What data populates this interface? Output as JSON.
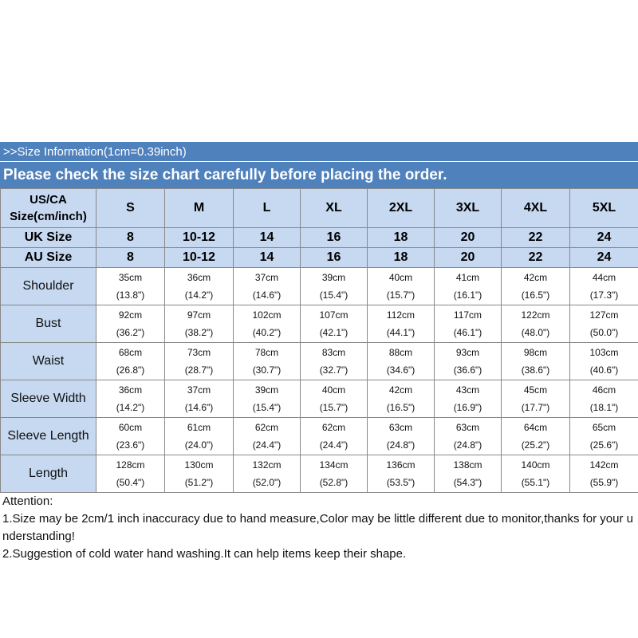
{
  "header": {
    "title": ">>Size Information(1cm=0.39inch)",
    "subtitle": "Please check the size chart carefully before placing the order."
  },
  "rows": {
    "us_label": "US/CA Size(cm/inch)",
    "us_label_line1": "US/CA",
    "us_label_line2": "Size(cm/inch)",
    "uk_label": "UK Size",
    "au_label": "AU Size"
  },
  "sizes": [
    "S",
    "M",
    "L",
    "XL",
    "2XL",
    "3XL",
    "4XL",
    "5XL"
  ],
  "uk_sizes": [
    "8",
    "10-12",
    "14",
    "16",
    "18",
    "20",
    "22",
    "24"
  ],
  "au_sizes": [
    "8",
    "10-12",
    "14",
    "16",
    "18",
    "20",
    "22",
    "24"
  ],
  "measurements": [
    {
      "name": "Shoulder",
      "cm": [
        "35cm",
        "36cm",
        "37cm",
        "39cm",
        "40cm",
        "41cm",
        "42cm",
        "44cm"
      ],
      "inch": [
        "(13.8\")",
        "(14.2\")",
        "(14.6\")",
        "(15.4\")",
        "(15.7\")",
        "(16.1\")",
        "(16.5\")",
        "(17.3\")"
      ]
    },
    {
      "name": "Bust",
      "cm": [
        "92cm",
        "97cm",
        "102cm",
        "107cm",
        "112cm",
        "117cm",
        "122cm",
        "127cm"
      ],
      "inch": [
        "(36.2\")",
        "(38.2\")",
        "(40.2\")",
        "(42.1\")",
        "(44.1\")",
        "(46.1\")",
        "(48.0\")",
        "(50.0\")"
      ]
    },
    {
      "name": "Waist",
      "cm": [
        "68cm",
        "73cm",
        "78cm",
        "83cm",
        "88cm",
        "93cm",
        "98cm",
        "103cm"
      ],
      "inch": [
        "(26.8\")",
        "(28.7\")",
        "(30.7\")",
        "(32.7\")",
        "(34.6\")",
        "(36.6\")",
        "(38.6\")",
        "(40.6\")"
      ]
    },
    {
      "name": "Sleeve Width",
      "cm": [
        "36cm",
        "37cm",
        "39cm",
        "40cm",
        "42cm",
        "43cm",
        "45cm",
        "46cm"
      ],
      "inch": [
        "(14.2\")",
        "(14.6\")",
        "(15.4\")",
        "(15.7\")",
        "(16.5\")",
        "(16.9\")",
        "(17.7\")",
        "(18.1\")"
      ]
    },
    {
      "name": "Sleeve Length",
      "cm": [
        "60cm",
        "61cm",
        "62cm",
        "62cm",
        "63cm",
        "63cm",
        "64cm",
        "65cm"
      ],
      "inch": [
        "(23.6\")",
        "(24.0\")",
        "(24.4\")",
        "(24.4\")",
        "(24.8\")",
        "(24.8\")",
        "(25.2\")",
        "(25.6\")"
      ]
    },
    {
      "name": "Length",
      "cm": [
        "128cm",
        "130cm",
        "132cm",
        "134cm",
        "136cm",
        "138cm",
        "140cm",
        "142cm"
      ],
      "inch": [
        "(50.4\")",
        "(51.2\")",
        "(52.0\")",
        "(52.8\")",
        "(53.5\")",
        "(54.3\")",
        "(55.1\")",
        "(55.9\")"
      ]
    }
  ],
  "notes": {
    "heading": "Attention:",
    "note1": "1.Size may be 2cm/1 inch inaccuracy due to hand measure,Color may be little different due to monitor,thanks for your understanding!",
    "note2": "2.Suggestion of cold water hand washing.It can help items keep their shape."
  },
  "colors": {
    "header_bg": "#4f81bd",
    "label_bg": "#c6d9f1",
    "cell_bg": "#ffffff"
  }
}
